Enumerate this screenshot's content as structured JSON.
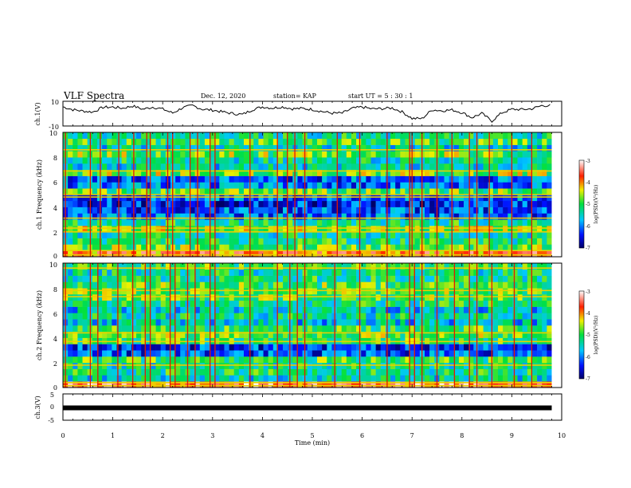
{
  "header": {
    "title": "VLF Spectra",
    "date": "Dec. 12, 2020",
    "station": "station= KAP",
    "start_time": "start  UT =   5  : 30 : 1"
  },
  "chart_data": [
    {
      "type": "line",
      "panel": "ch1-waveform",
      "ylabel": "ch.1(V)",
      "ylim": [
        -10,
        10
      ],
      "yticks": [
        "10",
        "-10"
      ],
      "xlim": [
        0,
        10
      ],
      "x_step_min": 0.2,
      "values": [
        5.5,
        3.2,
        2.1,
        1.3,
        5.1,
        5.3,
        4.4,
        6.2,
        3.6,
        5.3,
        3.7,
        0.5,
        4.8,
        6.5,
        3.5,
        2.9,
        1.4,
        0.1,
        -0.7,
        3.2,
        5.5,
        4.5,
        5.5,
        3.9,
        4.2,
        3.4,
        1.7,
        0.3,
        0.4,
        4.2,
        5.4,
        3.8,
        4.0,
        4.6,
        1.4,
        -3.9,
        -4.0,
        3.1,
        2.4,
        3.0,
        0.9,
        -3.2,
        0.2,
        -6.0,
        0.7,
        3.5,
        3.3,
        3.9,
        6.5,
        6.6
      ]
    },
    {
      "type": "heatmap",
      "panel": "ch1-spectrogram",
      "ylabel": "ch.1 Frequency  (kHz)",
      "yticks": [
        "0",
        "2",
        "4",
        "6",
        "8",
        "10"
      ],
      "ylim": [
        0,
        10
      ],
      "xlim": [
        0,
        9.8
      ],
      "colorbar": {
        "label": "log(PSD)(V²/Hz)",
        "ticks": [
          "-3",
          "-4",
          "-5",
          "-6",
          "-7"
        ],
        "range": [
          -7,
          -3
        ]
      },
      "band_freqs_khz": [
        0.25,
        0.75,
        1.25,
        1.75,
        2.25,
        2.75,
        3.25,
        3.75,
        4.25,
        4.75,
        5.25,
        5.75,
        6.25,
        6.75,
        7.25,
        7.75,
        8.25,
        8.75,
        9.25,
        9.75
      ],
      "band_levels": [
        -3.9,
        -4.8,
        -5.2,
        -5.3,
        -4.6,
        -5.2,
        -6.1,
        -6.2,
        -6.4,
        -6.1,
        -4.9,
        -6.0,
        -6.1,
        -4.7,
        -5.5,
        -5.3,
        -4.8,
        -5.5,
        -5.0,
        -5.3
      ],
      "line_freqs_khz": [
        0.15,
        0.5,
        2.0,
        2.3,
        3.1,
        4.8,
        5.0,
        6.9,
        8.6
      ],
      "spike_times_min": [
        0.05,
        0.55,
        0.75,
        1.12,
        1.42,
        1.68,
        1.75,
        2.1,
        2.2,
        2.55,
        2.7,
        2.95,
        3.05,
        3.75,
        4.3,
        4.5,
        4.65,
        4.85,
        5.5,
        5.95,
        6.5,
        6.95,
        7.0,
        7.2,
        7.5,
        7.8,
        8.15,
        8.3,
        8.55,
        9.0,
        9.4
      ]
    },
    {
      "type": "heatmap",
      "panel": "ch2-spectrogram",
      "ylabel": "ch.2 Frequency  (kHz)",
      "yticks": [
        "0",
        "2",
        "4",
        "6",
        "8",
        "10"
      ],
      "ylim": [
        0,
        10
      ],
      "xlim": [
        0,
        9.8
      ],
      "colorbar": {
        "label": "log(PSD)(V²/Hz)",
        "ticks": [
          "-3",
          "-4",
          "-5",
          "-6",
          "-7"
        ],
        "range": [
          -7,
          -3
        ]
      },
      "band_freqs_khz": [
        0.25,
        0.75,
        1.25,
        1.75,
        2.25,
        2.75,
        3.25,
        3.75,
        4.25,
        4.75,
        5.25,
        5.75,
        6.25,
        6.75,
        7.25,
        7.75,
        8.25,
        8.75,
        9.25,
        9.75
      ],
      "band_levels": [
        -3.6,
        -5.4,
        -5.2,
        -5.3,
        -5.0,
        -6.2,
        -6.3,
        -5.0,
        -4.8,
        -5.0,
        -5.6,
        -5.3,
        -5.6,
        -5.2,
        -4.9,
        -4.8,
        -4.9,
        -5.2,
        -5.3,
        -5.0
      ],
      "line_freqs_khz": [
        0.15,
        0.4,
        1.8,
        3.7,
        4.4,
        7.3,
        7.8,
        9.6
      ],
      "spike_times_min": [
        0.05,
        0.55,
        0.7,
        1.1,
        1.4,
        1.65,
        1.75,
        2.15,
        2.25,
        2.5,
        2.65,
        2.95,
        3.05,
        3.75,
        4.3,
        4.55,
        4.7,
        4.85,
        5.45,
        5.95,
        6.5,
        6.95,
        7.05,
        7.2,
        7.5,
        7.85,
        8.15,
        8.3,
        8.6,
        9.05,
        9.4
      ]
    },
    {
      "type": "line",
      "panel": "ch3-waveform",
      "ylabel": "ch.3(V)",
      "ylim": [
        -5,
        5
      ],
      "yticks": [
        "5",
        "0",
        "-5"
      ],
      "xlim": [
        0,
        10
      ],
      "xlabel": "Time  (min)",
      "xticks": [
        "0",
        "1",
        "2",
        "3",
        "4",
        "5",
        "6",
        "7",
        "8",
        "9",
        "10"
      ],
      "x": [
        0,
        9.8
      ],
      "values": [
        -0.3,
        -0.3
      ]
    }
  ]
}
